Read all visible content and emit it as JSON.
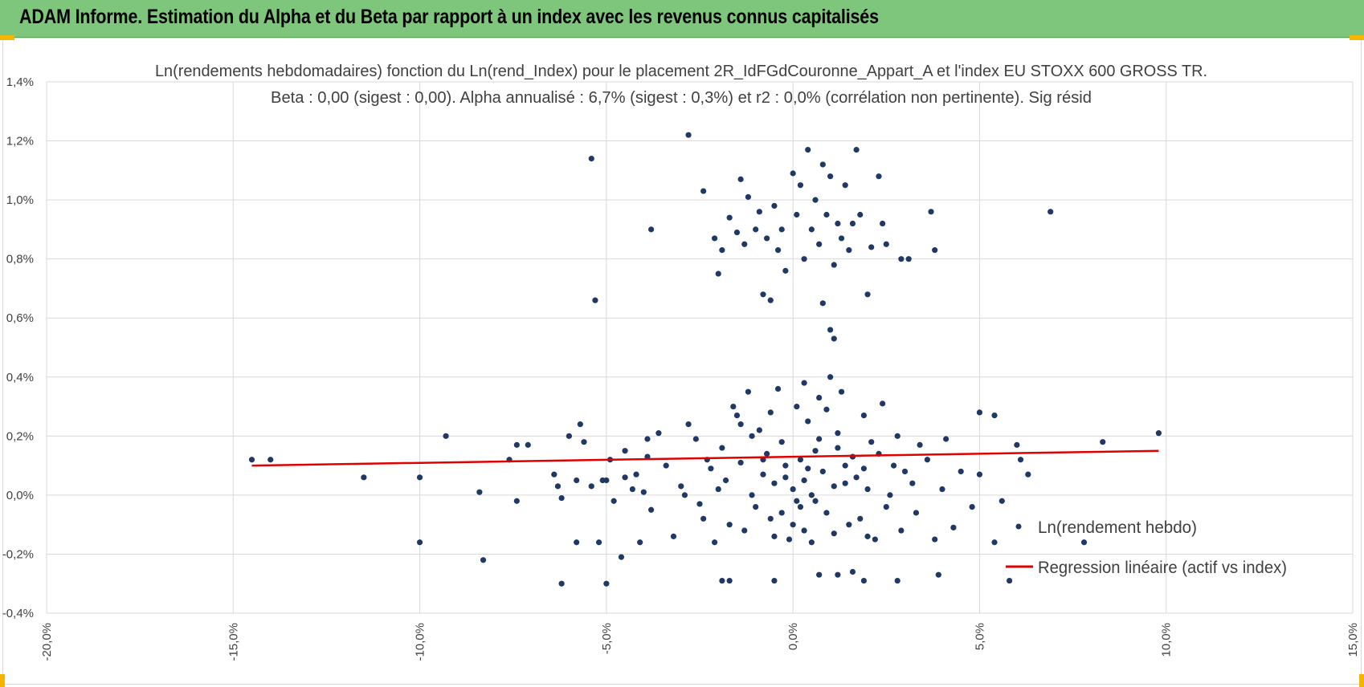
{
  "header": {
    "title": "ADAM Informe. Estimation du Alpha et du Beta par rapport à un index avec les revenus connus capitalisés"
  },
  "colors": {
    "banner": "#7dc67b",
    "points": "#1f3864",
    "regression": "#e00000",
    "grid": "#d9d9d9",
    "accent_corners": "#f5b400"
  },
  "chart_data": {
    "type": "scatter",
    "title_line1": "Ln(rendements hebdomadaires) fonction du Ln(rend_Index) pour le placement 2R_IdFGdCouronne_Appart_A et l'index EU STOXX 600 GROSS TR.",
    "title_line2": "Beta : 0,00 (sigest : 0,00). Alpha annualisé : 6,7% (sigest : 0,3%) et r2 : 0,0% (corrélation non pertinente). Sig résid",
    "x_ticks": [
      -20,
      -15,
      -10,
      -5,
      0,
      5,
      10,
      15
    ],
    "x_tick_labels": [
      "-20,0%",
      "-15,0%",
      "-10,0%",
      "-5,0%",
      "0,0%",
      "5,0%",
      "10,0%",
      "15,0%"
    ],
    "y_ticks": [
      -0.4,
      -0.2,
      0,
      0.2,
      0.4,
      0.6,
      0.8,
      1.0,
      1.2,
      1.4
    ],
    "y_tick_labels": [
      "-0,4%",
      "-0,2%",
      "0,0%",
      "0,2%",
      "0,4%",
      "0,6%",
      "0,8%",
      "1,0%",
      "1,2%",
      "1,4%"
    ],
    "xlim": [
      -20,
      15
    ],
    "ylim": [
      -0.4,
      1.4
    ],
    "grid": "vertical and horizontal",
    "legend_position": "bottom-right",
    "series": [
      {
        "name": "Ln(rendement hebdo)",
        "kind": "scatter",
        "points": [
          [
            -14.5,
            0.12
          ],
          [
            -14.0,
            0.12
          ],
          [
            -11.5,
            0.06
          ],
          [
            -10.0,
            -0.16
          ],
          [
            -10.0,
            0.06
          ],
          [
            -9.3,
            0.2
          ],
          [
            -8.4,
            0.01
          ],
          [
            -8.3,
            -0.22
          ],
          [
            -7.6,
            0.12
          ],
          [
            -7.4,
            0.17
          ],
          [
            -7.4,
            -0.02
          ],
          [
            -7.1,
            0.17
          ],
          [
            -6.4,
            0.07
          ],
          [
            -6.3,
            0.03
          ],
          [
            -6.2,
            -0.01
          ],
          [
            -6.2,
            -0.3
          ],
          [
            -6.0,
            0.2
          ],
          [
            -5.8,
            0.05
          ],
          [
            -5.8,
            -0.16
          ],
          [
            -5.7,
            0.24
          ],
          [
            -5.6,
            0.18
          ],
          [
            -5.4,
            0.03
          ],
          [
            -5.2,
            -0.16
          ],
          [
            -5.1,
            0.05
          ],
          [
            -5.4,
            1.14
          ],
          [
            -5.3,
            0.66
          ],
          [
            -5.0,
            0.05
          ],
          [
            -5.0,
            -0.3
          ],
          [
            -4.9,
            0.12
          ],
          [
            -4.6,
            -0.21
          ],
          [
            -4.5,
            0.06
          ],
          [
            -4.3,
            0.02
          ],
          [
            -4.1,
            -0.16
          ],
          [
            -3.9,
            0.19
          ],
          [
            -3.8,
            0.9
          ],
          [
            -2.8,
            1.22
          ],
          [
            -2.4,
            1.03
          ],
          [
            -2.1,
            0.87
          ],
          [
            -2.0,
            0.75
          ],
          [
            -1.9,
            0.83
          ],
          [
            -1.7,
            0.94
          ],
          [
            -1.5,
            0.89
          ],
          [
            -1.4,
            1.07
          ],
          [
            -1.3,
            0.85
          ],
          [
            -1.2,
            1.01
          ],
          [
            -1.0,
            0.9
          ],
          [
            -0.9,
            0.96
          ],
          [
            -0.8,
            0.68
          ],
          [
            -0.7,
            0.87
          ],
          [
            -0.6,
            0.66
          ],
          [
            -0.5,
            0.98
          ],
          [
            -0.4,
            0.83
          ],
          [
            -0.3,
            0.9
          ],
          [
            -0.2,
            0.76
          ],
          [
            0.0,
            1.09
          ],
          [
            0.1,
            0.95
          ],
          [
            0.2,
            1.05
          ],
          [
            0.3,
            0.8
          ],
          [
            0.4,
            1.17
          ],
          [
            0.5,
            0.9
          ],
          [
            0.6,
            1.0
          ],
          [
            0.7,
            0.85
          ],
          [
            0.8,
            1.12
          ],
          [
            0.9,
            0.95
          ],
          [
            1.0,
            1.08
          ],
          [
            1.1,
            0.78
          ],
          [
            1.2,
            0.92
          ],
          [
            1.3,
            0.87
          ],
          [
            1.4,
            1.05
          ],
          [
            1.5,
            0.83
          ],
          [
            1.6,
            0.92
          ],
          [
            1.7,
            1.17
          ],
          [
            1.8,
            0.95
          ],
          [
            2.0,
            0.68
          ],
          [
            2.1,
            0.84
          ],
          [
            2.3,
            1.08
          ],
          [
            2.4,
            0.92
          ],
          [
            2.5,
            0.85
          ],
          [
            2.9,
            0.8
          ],
          [
            3.1,
            0.8
          ],
          [
            3.7,
            0.96
          ],
          [
            3.8,
            0.83
          ],
          [
            0.8,
            0.65
          ],
          [
            1.0,
            0.56
          ],
          [
            1.1,
            0.53
          ],
          [
            6.9,
            0.96
          ],
          [
            5.4,
            0.27
          ],
          [
            5.0,
            0.28
          ],
          [
            5.0,
            0.07
          ],
          [
            5.4,
            -0.16
          ],
          [
            5.6,
            -0.02
          ],
          [
            5.8,
            -0.29
          ],
          [
            6.0,
            0.17
          ],
          [
            6.1,
            0.12
          ],
          [
            6.3,
            0.07
          ],
          [
            7.8,
            -0.16
          ],
          [
            8.3,
            0.18
          ],
          [
            9.8,
            0.21
          ],
          [
            3.9,
            -0.27
          ],
          [
            2.8,
            -0.29
          ],
          [
            1.9,
            -0.29
          ],
          [
            1.6,
            -0.26
          ],
          [
            1.2,
            -0.27
          ],
          [
            0.7,
            -0.27
          ],
          [
            -0.5,
            -0.29
          ],
          [
            -1.7,
            -0.29
          ],
          [
            -1.9,
            -0.29
          ],
          [
            0.0,
            0.02
          ],
          [
            0.3,
            0.05
          ],
          [
            -0.2,
            0.1
          ],
          [
            0.5,
            0.0
          ],
          [
            0.8,
            0.08
          ],
          [
            -0.5,
            0.04
          ],
          [
            1.1,
            0.03
          ],
          [
            -0.8,
            0.07
          ],
          [
            0.2,
            -0.04
          ],
          [
            1.4,
            0.1
          ],
          [
            -1.1,
            0.0
          ],
          [
            0.6,
            0.15
          ],
          [
            -0.3,
            0.18
          ],
          [
            1.7,
            0.06
          ],
          [
            -1.4,
            0.11
          ],
          [
            0.9,
            -0.06
          ],
          [
            -0.6,
            -0.08
          ],
          [
            2.0,
            0.02
          ],
          [
            -1.8,
            0.05
          ],
          [
            0.4,
            0.25
          ],
          [
            1.2,
            0.21
          ],
          [
            -0.9,
            0.22
          ],
          [
            2.3,
            0.14
          ],
          [
            -2.2,
            0.09
          ],
          [
            0.1,
            0.3
          ],
          [
            1.5,
            -0.1
          ],
          [
            -1.3,
            -0.12
          ],
          [
            2.6,
            0.0
          ],
          [
            -2.5,
            -0.03
          ],
          [
            0.7,
            0.33
          ],
          [
            -0.1,
            -0.15
          ],
          [
            3.0,
            0.08
          ],
          [
            -3.0,
            0.03
          ],
          [
            1.9,
            0.27
          ],
          [
            -1.6,
            0.3
          ],
          [
            0.3,
            0.38
          ],
          [
            1.0,
            0.4
          ],
          [
            -0.4,
            0.36
          ],
          [
            3.3,
            -0.06
          ],
          [
            -3.4,
            0.1
          ],
          [
            2.2,
            -0.15
          ],
          [
            -2.1,
            -0.16
          ],
          [
            0.5,
            -0.16
          ],
          [
            3.6,
            0.12
          ],
          [
            -3.8,
            -0.05
          ],
          [
            2.8,
            0.2
          ],
          [
            -2.8,
            0.24
          ],
          [
            4.0,
            0.02
          ],
          [
            -4.2,
            0.07
          ],
          [
            4.3,
            -0.11
          ],
          [
            -4.5,
            0.15
          ],
          [
            1.3,
            0.35
          ],
          [
            -1.2,
            0.35
          ],
          [
            2.5,
            -0.04
          ],
          [
            -2.4,
            -0.08
          ],
          [
            0.0,
            -0.1
          ],
          [
            0.2,
            0.12
          ],
          [
            -0.7,
            0.14
          ],
          [
            1.6,
            0.13
          ],
          [
            -1.9,
            0.16
          ],
          [
            2.9,
            -0.12
          ],
          [
            -3.2,
            -0.14
          ],
          [
            3.8,
            -0.15
          ],
          [
            -3.6,
            0.21
          ],
          [
            4.5,
            0.08
          ],
          [
            4.8,
            -0.04
          ],
          [
            -4.8,
            -0.02
          ],
          [
            0.6,
            -0.02
          ],
          [
            -0.2,
            0.06
          ],
          [
            1.8,
            -0.08
          ],
          [
            -1.0,
            -0.04
          ],
          [
            2.1,
            0.18
          ],
          [
            -2.6,
            0.19
          ],
          [
            3.4,
            0.17
          ],
          [
            -3.9,
            0.13
          ],
          [
            1.1,
            -0.13
          ],
          [
            -0.6,
            0.28
          ],
          [
            0.9,
            0.29
          ],
          [
            -1.5,
            0.27
          ],
          [
            2.4,
            0.31
          ],
          [
            -0.3,
            -0.06
          ],
          [
            0.4,
            0.09
          ],
          [
            1.4,
            0.04
          ],
          [
            -1.7,
            -0.1
          ],
          [
            2.7,
            0.1
          ],
          [
            -2.3,
            0.12
          ],
          [
            3.2,
            0.04
          ],
          [
            -2.9,
            0.0
          ],
          [
            4.1,
            0.19
          ],
          [
            -4.0,
            0.01
          ],
          [
            0.1,
            -0.02
          ],
          [
            0.7,
            0.19
          ],
          [
            -0.8,
            0.12
          ],
          [
            1.2,
            0.16
          ],
          [
            -1.1,
            0.2
          ],
          [
            1.9,
            0.09
          ],
          [
            -1.4,
            0.24
          ],
          [
            0.3,
            -0.12
          ],
          [
            -0.5,
            -0.14
          ],
          [
            2.0,
            -0.14
          ],
          [
            -2.0,
            0.02
          ]
        ]
      },
      {
        "name": "Regression linéaire (actif vs index)",
        "kind": "line",
        "points": [
          [
            -14.5,
            0.1
          ],
          [
            9.8,
            0.15
          ]
        ]
      }
    ]
  }
}
